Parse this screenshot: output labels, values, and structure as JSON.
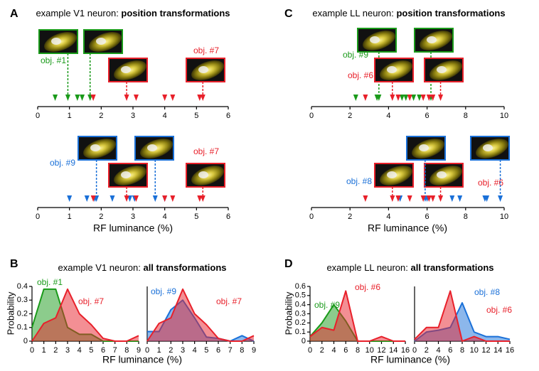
{
  "panel_labels": [
    "A",
    "B",
    "C",
    "D"
  ],
  "chart_data": [
    {
      "type": "marker",
      "title": "example V1 neuron: ",
      "title_bold": "position transformations",
      "xlim": [
        0,
        6
      ],
      "xticks": [
        0,
        1,
        2,
        3,
        4,
        5,
        6
      ],
      "series": [
        {
          "name": "obj. #1",
          "color": "#1a9a1a",
          "values": [
            0.55,
            0.95,
            1.25,
            1.4,
            1.65
          ]
        },
        {
          "name": "obj. #7",
          "color": "#e8202a",
          "values": [
            1.75,
            2.8,
            3.1,
            4.0,
            4.25,
            5.1,
            5.2
          ]
        }
      ]
    },
    {
      "type": "marker",
      "xlabel": "RF luminance (%)",
      "xlim": [
        0,
        6
      ],
      "xticks": [
        0,
        1,
        2,
        3,
        4,
        5,
        6
      ],
      "series": [
        {
          "name": "obj. #9",
          "color": "#1a70d8",
          "values": [
            1.0,
            1.55,
            1.8,
            1.85,
            2.35,
            2.9,
            3.05,
            3.7,
            4.0
          ]
        },
        {
          "name": "obj. #7",
          "color": "#e8202a",
          "values": [
            1.75,
            2.8,
            3.1,
            4.0,
            4.25,
            5.1,
            5.2
          ]
        }
      ]
    },
    {
      "type": "marker",
      "title": "example LL neuron: ",
      "title_bold": "position transformations",
      "xlim": [
        0,
        10
      ],
      "xticks": [
        0,
        2,
        4,
        6,
        8,
        10
      ],
      "series": [
        {
          "name": "obj. #9",
          "color": "#1a9a1a",
          "values": [
            2.3,
            3.4,
            3.5,
            4.7,
            4.9,
            5.3,
            5.6,
            6.2
          ]
        },
        {
          "name": "obj. #6",
          "color": "#e8202a",
          "values": [
            2.8,
            4.2,
            4.5,
            5.1,
            5.8,
            6.1,
            6.3,
            6.7
          ]
        }
      ]
    },
    {
      "type": "marker",
      "xlabel": "RF luminance (%)",
      "xlim": [
        0,
        10
      ],
      "xticks": [
        0,
        2,
        4,
        6,
        8,
        10
      ],
      "series": [
        {
          "name": "obj. #8",
          "color": "#1a70d8",
          "values": [
            4.6,
            5.9,
            6.0,
            7.3,
            7.7,
            9.0,
            9.1,
            9.8
          ]
        },
        {
          "name": "obj. #6",
          "color": "#e8202a",
          "values": [
            2.8,
            4.2,
            4.5,
            5.1,
            5.8,
            6.1,
            6.3,
            6.7
          ]
        }
      ]
    },
    {
      "type": "area",
      "title": "example V1 neuron: ",
      "title_bold": "all transformations",
      "xlabel": "RF luminance (%)",
      "ylabel": "Probability",
      "x": [
        0,
        1,
        2,
        3,
        4,
        5,
        6,
        7,
        8,
        9
      ],
      "xlim": [
        0,
        9
      ],
      "xticks": [
        0,
        1,
        2,
        3,
        4,
        5,
        6,
        7,
        8,
        9
      ],
      "ylim": [
        0,
        0.4
      ],
      "yticks": [
        0,
        0.1,
        0.2,
        0.3,
        0.4
      ],
      "series": [
        {
          "name": "obj. #1",
          "color": "#1a9a1a",
          "values": [
            0.1,
            0.38,
            0.38,
            0.1,
            0.05,
            0.05,
            0,
            0,
            0,
            0
          ]
        },
        {
          "name": "obj. #7",
          "color": "#e8202a",
          "values": [
            0,
            0.13,
            0.17,
            0.38,
            0.2,
            0.12,
            0.02,
            0,
            0,
            0.04
          ]
        }
      ]
    },
    {
      "type": "area",
      "x": [
        0,
        1,
        2,
        3,
        4,
        5,
        6,
        7,
        8,
        9
      ],
      "xlim": [
        0,
        9
      ],
      "xticks": [
        0,
        1,
        2,
        3,
        4,
        5,
        6,
        7,
        8,
        9
      ],
      "ylim": [
        0,
        0.4
      ],
      "series": [
        {
          "name": "obj. #9",
          "color": "#1a70d8",
          "values": [
            0.07,
            0.07,
            0.23,
            0.3,
            0.17,
            0.03,
            0.02,
            0,
            0.04,
            0
          ]
        },
        {
          "name": "obj. #7",
          "color": "#e8202a",
          "values": [
            0,
            0.13,
            0.17,
            0.38,
            0.2,
            0.12,
            0.02,
            0,
            0,
            0.04
          ]
        }
      ]
    },
    {
      "type": "area",
      "title": "example LL neuron: ",
      "title_bold": "all transformations",
      "xlabel": "RF luminance (%)",
      "ylabel": "Probability",
      "x": [
        0,
        2,
        4,
        6,
        8,
        10,
        12,
        14,
        16
      ],
      "xlim": [
        0,
        16
      ],
      "xticks": [
        0,
        2,
        4,
        6,
        8,
        10,
        12,
        14,
        16
      ],
      "ylim": [
        0,
        0.6
      ],
      "yticks": [
        0,
        0.1,
        0.2,
        0.3,
        0.4,
        0.5,
        0.6
      ],
      "series": [
        {
          "name": "obj. #9",
          "color": "#1a9a1a",
          "values": [
            0.05,
            0.2,
            0.4,
            0.22,
            0,
            0,
            0,
            0,
            0
          ]
        },
        {
          "name": "obj. #6",
          "color": "#e8202a",
          "values": [
            0.05,
            0.15,
            0.12,
            0.55,
            0,
            0,
            0.05,
            0,
            0
          ]
        }
      ]
    },
    {
      "type": "area",
      "x": [
        0,
        2,
        4,
        6,
        8,
        10,
        12,
        14,
        16
      ],
      "xlim": [
        0,
        16
      ],
      "xticks": [
        0,
        2,
        4,
        6,
        8,
        10,
        12,
        14,
        16
      ],
      "ylim": [
        0,
        0.6
      ],
      "series": [
        {
          "name": "obj. #8",
          "color": "#1a70d8",
          "values": [
            0,
            0.1,
            0.12,
            0.15,
            0.42,
            0.1,
            0.05,
            0.05,
            0.02
          ]
        },
        {
          "name": "obj. #6",
          "color": "#e8202a",
          "values": [
            0.02,
            0.15,
            0.15,
            0.55,
            0,
            0.05,
            0,
            0,
            0
          ]
        }
      ]
    }
  ]
}
